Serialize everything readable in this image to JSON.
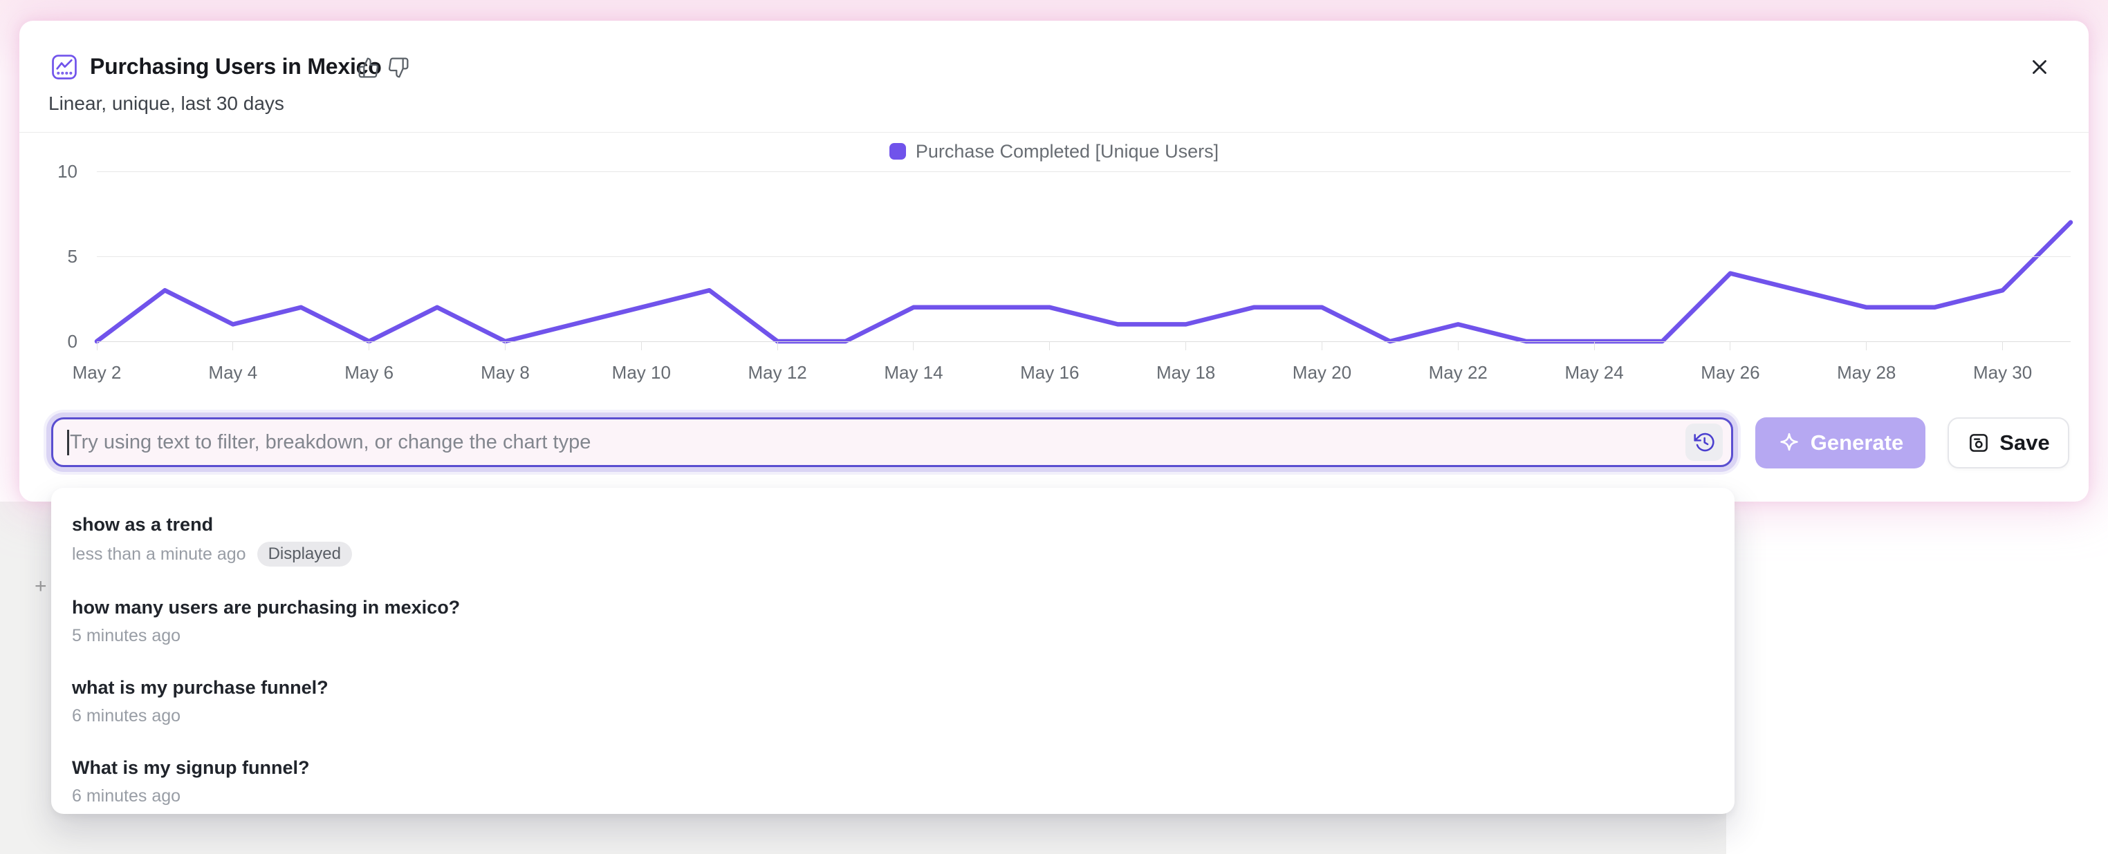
{
  "header": {
    "title": "Purchasing Users in Mexico",
    "subtitle": "Linear, unique, last 30 days"
  },
  "chart_data": {
    "type": "line",
    "title": "Purchasing Users in Mexico",
    "x": [
      "May 2",
      "May 3",
      "May 4",
      "May 5",
      "May 6",
      "May 7",
      "May 8",
      "May 9",
      "May 10",
      "May 11",
      "May 12",
      "May 13",
      "May 14",
      "May 15",
      "May 16",
      "May 17",
      "May 18",
      "May 19",
      "May 20",
      "May 21",
      "May 22",
      "May 23",
      "May 24",
      "May 25",
      "May 26",
      "May 27",
      "May 28",
      "May 29",
      "May 30",
      "May 31"
    ],
    "series": [
      {
        "name": "Purchase Completed [Unique Users]",
        "values": [
          0,
          3,
          1,
          2,
          0,
          2,
          0,
          1,
          2,
          3,
          0,
          0,
          2,
          2,
          2,
          1,
          1,
          2,
          2,
          0,
          1,
          0,
          0,
          0,
          4,
          3,
          2,
          2,
          3,
          7
        ]
      }
    ],
    "x_tick_labels": [
      "May 2",
      "May 4",
      "May 6",
      "May 8",
      "May 10",
      "May 12",
      "May 14",
      "May 16",
      "May 18",
      "May 20",
      "May 22",
      "May 24",
      "May 26",
      "May 28",
      "May 30"
    ],
    "yticks": [
      0,
      5,
      10
    ],
    "ylim": [
      0,
      10
    ],
    "grid": true,
    "legend_position": "top-center",
    "line_color": "#7053EB"
  },
  "prompt_bar": {
    "placeholder": "Try using text to filter, breakdown, or change the chart type",
    "generate_label": "Generate",
    "save_label": "Save"
  },
  "history_dropdown": {
    "items": [
      {
        "query": "show as a trend",
        "time": "less than a minute ago",
        "badge": "Displayed"
      },
      {
        "query": "how many users are purchasing in mexico?",
        "time": "5 minutes ago",
        "badge": ""
      },
      {
        "query": "what is my purchase funnel?",
        "time": "6 minutes ago",
        "badge": ""
      },
      {
        "query": "What is my signup funnel?",
        "time": "6 minutes ago",
        "badge": ""
      }
    ]
  },
  "background": {
    "plus_glyph": "+"
  },
  "colors": {
    "accent_purple": "#7053EB",
    "input_border": "#5A4ED0",
    "input_ring": "#DAD4F4",
    "input_bg": "#FCF4F9",
    "generate_bg": "#B6A8F2",
    "badge_bg": "#E9E9EC",
    "pink_glow": "#F3BFDD"
  }
}
